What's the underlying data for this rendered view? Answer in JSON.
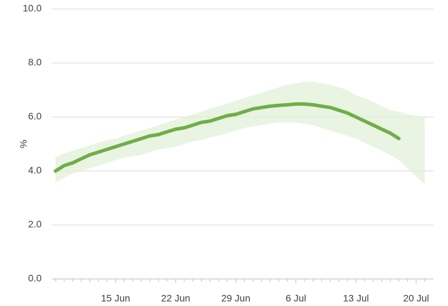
{
  "chart_data": {
    "type": "line",
    "y_label": "%",
    "categories": [
      null,
      null,
      null,
      null,
      null,
      null,
      null,
      "15 Jun",
      null,
      null,
      null,
      null,
      null,
      null,
      "22 Jun",
      null,
      null,
      null,
      null,
      null,
      null,
      "29 Jun",
      null,
      null,
      null,
      null,
      null,
      null,
      "6 Jul",
      null,
      null,
      null,
      null,
      null,
      null,
      "13 Jul",
      null,
      null,
      null,
      null,
      null,
      null,
      "20 Jul",
      null
    ],
    "series": [
      {
        "color": "#70ad47",
        "values": [
          4.0,
          4.2,
          4.3,
          4.45,
          4.6,
          4.7,
          4.8,
          4.9,
          5.0,
          5.1,
          5.2,
          5.3,
          5.35,
          5.45,
          5.55,
          5.6,
          5.7,
          5.8,
          5.85,
          5.95,
          6.05,
          6.1,
          6.2,
          6.3,
          6.35,
          6.4,
          6.43,
          6.45,
          6.48,
          6.48,
          6.45,
          6.4,
          6.35,
          6.25,
          6.15,
          6.0,
          5.85,
          5.7,
          5.55,
          5.4,
          5.2,
          null,
          null,
          null
        ]
      }
    ],
    "band": {
      "color": "#e2f0d9",
      "upper": [
        4.5,
        4.65,
        4.75,
        4.85,
        4.95,
        5.05,
        5.15,
        5.2,
        5.3,
        5.4,
        5.5,
        5.6,
        5.7,
        5.8,
        5.9,
        6.0,
        6.1,
        6.2,
        6.3,
        6.4,
        6.5,
        6.6,
        6.7,
        6.8,
        6.9,
        7.0,
        7.1,
        7.2,
        7.25,
        7.3,
        7.3,
        7.25,
        7.2,
        7.1,
        7.0,
        6.8,
        6.7,
        6.55,
        6.4,
        6.25,
        6.2,
        6.1,
        6.05,
        6.0
      ],
      "lower": [
        3.6,
        3.75,
        3.9,
        4.0,
        4.1,
        4.2,
        4.3,
        4.4,
        4.5,
        4.55,
        4.6,
        4.7,
        4.8,
        4.85,
        4.9,
        5.0,
        5.1,
        5.15,
        5.25,
        5.3,
        5.4,
        5.5,
        5.6,
        5.65,
        5.7,
        5.75,
        5.8,
        5.8,
        5.8,
        5.75,
        5.7,
        5.6,
        5.5,
        5.4,
        5.3,
        5.2,
        5.05,
        4.9,
        4.75,
        4.6,
        4.4,
        4.1,
        3.8,
        3.5
      ]
    },
    "ylim": [
      0,
      10
    ],
    "yticks": [
      {
        "value": 0,
        "label": "0.0"
      },
      {
        "value": 2,
        "label": "2.0"
      },
      {
        "value": 4,
        "label": "4.0"
      },
      {
        "value": 6,
        "label": "6.0"
      },
      {
        "value": 8,
        "label": "8.0"
      },
      {
        "value": 10,
        "label": "10.0"
      }
    ],
    "grid": true
  }
}
